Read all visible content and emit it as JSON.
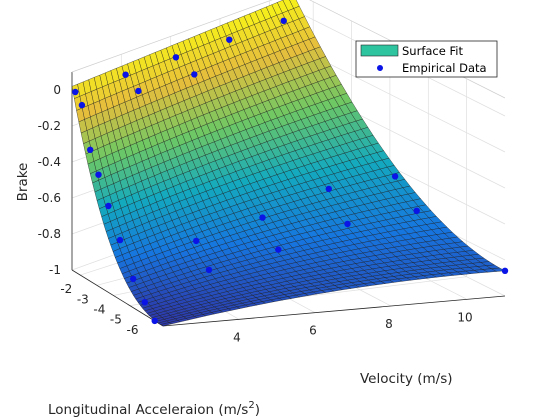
{
  "chart_data": {
    "type": "surface3d",
    "title": "",
    "xlabel": "Velocity (m/s)",
    "ylabel": "Longitudinal Acceleraion (m/s",
    "ylabel_superscript": "2",
    "ylabel_suffix": ")",
    "zlabel": "Brake",
    "x_ticks": [
      "4",
      "6",
      "8",
      "10"
    ],
    "x_tick_values": [
      4,
      6,
      8,
      10
    ],
    "y_ticks": [
      "-2",
      "-3",
      "-4",
      "-5",
      "-6"
    ],
    "y_tick_values": [
      -2,
      -3,
      -4,
      -5,
      -6
    ],
    "z_ticks": [
      "0",
      "-0.2",
      "-0.4",
      "-0.6",
      "-0.8",
      "-1"
    ],
    "z_tick_values": [
      0,
      -0.2,
      -0.4,
      -0.6,
      -0.8,
      -1
    ],
    "xlim": [
      2,
      11
    ],
    "ylim": [
      -7,
      -1.5
    ],
    "zlim": [
      -1,
      0.1
    ],
    "grid": true,
    "legend_position": "top-right",
    "surface_series": {
      "name": "Surface Fit",
      "color": "#2ec4a0",
      "colormap": "parula",
      "grid_x": [
        2.0,
        11.0
      ],
      "grid_y": [
        -7.0,
        -1.5
      ],
      "samples": 40
    },
    "scatter_series": {
      "name": "Empirical Data",
      "color": "#0a14e6",
      "points": [
        {
          "x": 2.0,
          "y": -1.7,
          "z": 0.0
        },
        {
          "x": 2.0,
          "y": -2.1,
          "z": -0.05
        },
        {
          "x": 2.0,
          "y": -2.6,
          "z": -0.27
        },
        {
          "x": 2.0,
          "y": -3.1,
          "z": -0.38
        },
        {
          "x": 2.0,
          "y": -3.7,
          "z": -0.52
        },
        {
          "x": 2.0,
          "y": -4.4,
          "z": -0.67
        },
        {
          "x": 2.0,
          "y": -5.2,
          "z": -0.84
        },
        {
          "x": 2.0,
          "y": -5.9,
          "z": -0.93
        },
        {
          "x": 2.0,
          "y": -6.5,
          "z": -1.0
        },
        {
          "x": 4.0,
          "y": -1.7,
          "z": 0.0
        },
        {
          "x": 4.0,
          "y": -2.3,
          "z": -0.05
        },
        {
          "x": 4.0,
          "y": -5.0,
          "z": -0.7
        },
        {
          "x": 4.0,
          "y": -5.6,
          "z": -0.82
        },
        {
          "x": 6.0,
          "y": -1.7,
          "z": 0.0
        },
        {
          "x": 6.0,
          "y": -2.4,
          "z": -0.04
        },
        {
          "x": 6.0,
          "y": -5.0,
          "z": -0.63
        },
        {
          "x": 6.0,
          "y": -5.6,
          "z": -0.76
        },
        {
          "x": 8.0,
          "y": -1.8,
          "z": 0.01
        },
        {
          "x": 8.0,
          "y": -5.0,
          "z": -0.53
        },
        {
          "x": 8.0,
          "y": -5.6,
          "z": -0.67
        },
        {
          "x": 10.0,
          "y": -1.9,
          "z": 0.03
        },
        {
          "x": 10.0,
          "y": -5.0,
          "z": -0.52
        },
        {
          "x": 10.0,
          "y": -5.6,
          "z": -0.65
        },
        {
          "x": 11.0,
          "y": -7.0,
          "z": -0.86
        }
      ]
    }
  }
}
